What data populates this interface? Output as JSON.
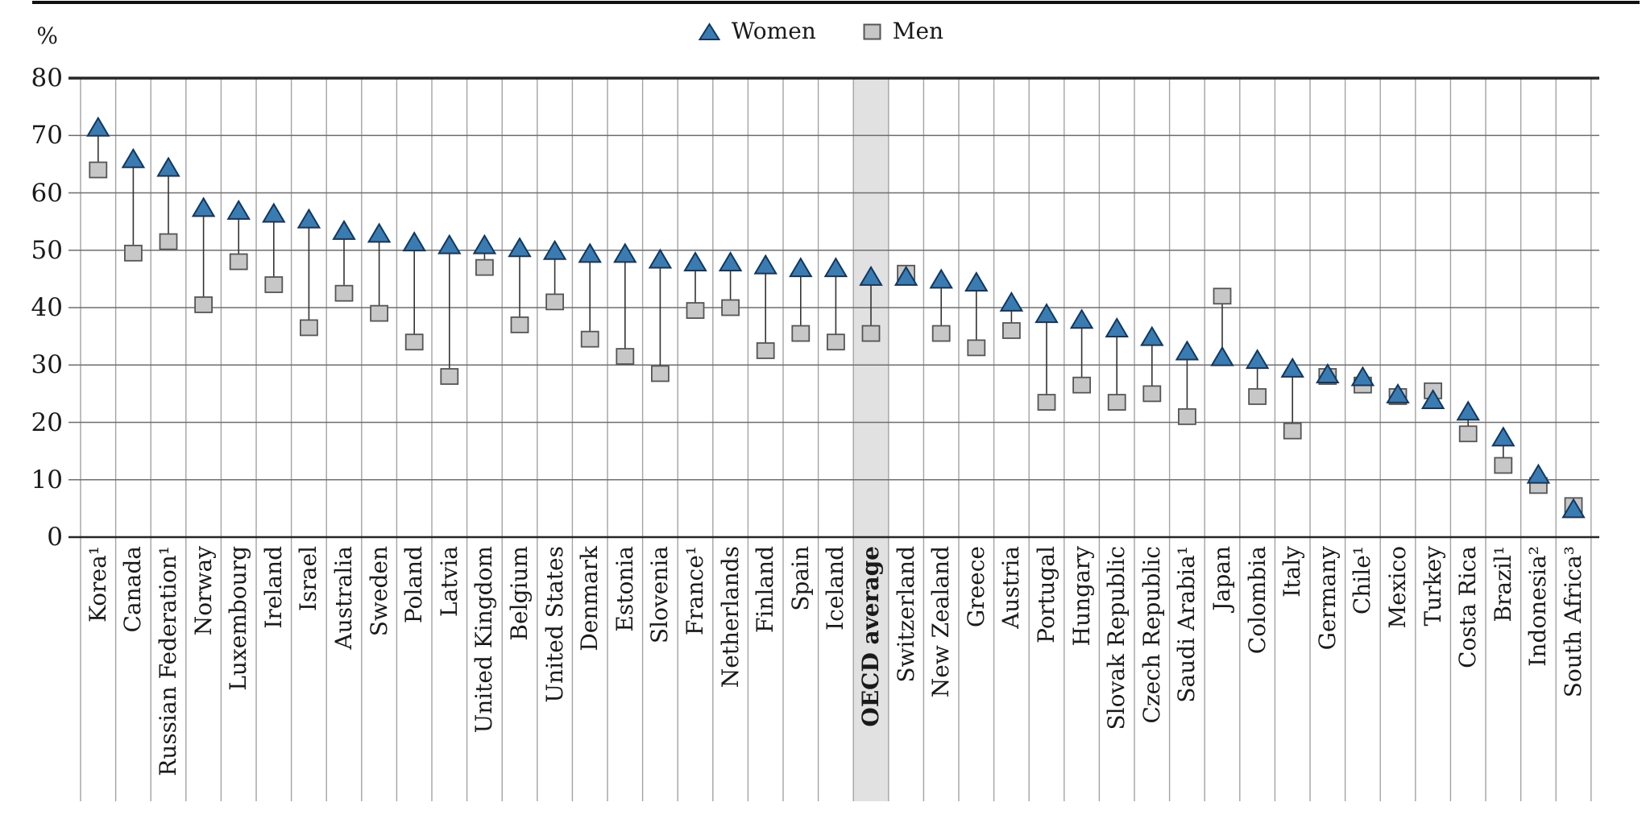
{
  "legend": {
    "women_label": "Women",
    "men_label": "Men"
  },
  "colors": {
    "women_fill": "#3A7CB1",
    "women_border": "#15365B",
    "men_fill": "#C7C7C7",
    "men_border": "#555555",
    "highlight_band": "#E1E1E2",
    "grid_minor_h": "#6E6E6E",
    "grid_minor_v": "#A3A3A3",
    "grid_major": "#262626",
    "connector": "#333333",
    "text": "#1A1A1A"
  },
  "chart_data": {
    "type": "scatter",
    "subtype": "dumbbell",
    "title": "",
    "xlabel": "",
    "ylabel": "%",
    "ylim": [
      0,
      80
    ],
    "ytick_step": 10,
    "yticks": [
      0,
      10,
      20,
      30,
      40,
      50,
      60,
      70,
      80
    ],
    "grid": true,
    "legend_position": "top-center",
    "highlight_category": "OECD average",
    "categories": [
      "Korea¹",
      "Canada",
      "Russian Federation¹",
      "Norway",
      "Luxembourg",
      "Ireland",
      "Israel",
      "Australia",
      "Sweden",
      "Poland",
      "Latvia",
      "United Kingdom",
      "Belgium",
      "United States",
      "Denmark",
      "Estonia",
      "Slovenia",
      "France¹",
      "Netherlands",
      "Finland",
      "Spain",
      "Iceland",
      "OECD average",
      "Switzerland",
      "New Zealand",
      "Greece",
      "Austria",
      "Portugal",
      "Hungary",
      "Slovak Republic",
      "Czech Republic",
      "Saudi Arabia¹",
      "Japan",
      "Colombia",
      "Italy",
      "Germany",
      "Chile¹",
      "Mexico",
      "Turkey",
      "Costa Rica",
      "Brazil¹",
      "Indonesia²",
      "South Africa³"
    ],
    "series": [
      {
        "name": "Women",
        "marker": "triangle",
        "values": [
          71.5,
          66,
          64.5,
          57.5,
          57,
          56.5,
          55.5,
          53.5,
          53,
          51.5,
          51,
          51,
          50.5,
          50,
          49.5,
          49.5,
          48.5,
          48,
          48,
          47.5,
          47,
          47,
          45.5,
          45.5,
          45,
          44.5,
          41,
          39,
          38,
          36.5,
          35,
          32.5,
          31.5,
          31,
          29.5,
          28.5,
          28,
          25,
          24,
          22,
          17.5,
          11,
          5
        ]
      },
      {
        "name": "Men",
        "marker": "square",
        "values": [
          64,
          49.5,
          51.5,
          40.5,
          48,
          44,
          36.5,
          42.5,
          39,
          34,
          28,
          47,
          37,
          41,
          34.5,
          31.5,
          28.5,
          39.5,
          40,
          32.5,
          35.5,
          34,
          35.5,
          46,
          35.5,
          33,
          36,
          23.5,
          26.5,
          23.5,
          25,
          21,
          42,
          24.5,
          18.5,
          28,
          26.5,
          24.5,
          25.5,
          18,
          12.5,
          9,
          5.5
        ]
      }
    ]
  }
}
